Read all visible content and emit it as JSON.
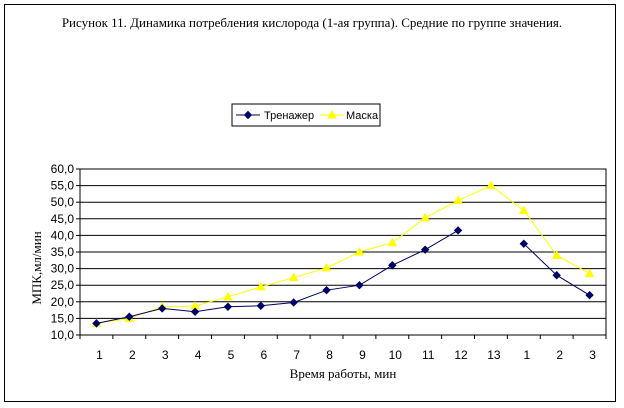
{
  "chart_data": {
    "type": "line",
    "title": "Рисунок 11. Динамика потребления кислорода (1-ая группа). Средние по группе значения.",
    "xlabel": "Время работы, мин",
    "ylabel": "МПК,мл/мин",
    "categories": [
      "1",
      "2",
      "3",
      "4",
      "5",
      "6",
      "7",
      "8",
      "9",
      "10",
      "11",
      "12",
      "13",
      "1",
      "2",
      "3"
    ],
    "y_ticks": [
      "10,0",
      "15,0",
      "20,0",
      "25,0",
      "30,0",
      "35,0",
      "40,0",
      "45,0",
      "50,0",
      "55,0",
      "60,0"
    ],
    "ylim": [
      10,
      60
    ],
    "grid": true,
    "legend_position": "top-center",
    "series": [
      {
        "name": "Тренажер",
        "color": "#000066",
        "marker": "diamond",
        "values": [
          13.5,
          15.5,
          18.0,
          17.0,
          18.5,
          18.8,
          19.8,
          23.5,
          25.0,
          31.0,
          35.7,
          41.5,
          null,
          37.5,
          28.0,
          22.0
        ]
      },
      {
        "name": "Маска",
        "color": "#FFFF00",
        "marker": "triangle",
        "values": [
          13.5,
          15.0,
          18.5,
          18.7,
          21.5,
          24.5,
          27.3,
          30.2,
          35.0,
          37.8,
          45.3,
          50.5,
          55.0,
          47.5,
          34.0,
          28.5
        ]
      }
    ]
  }
}
